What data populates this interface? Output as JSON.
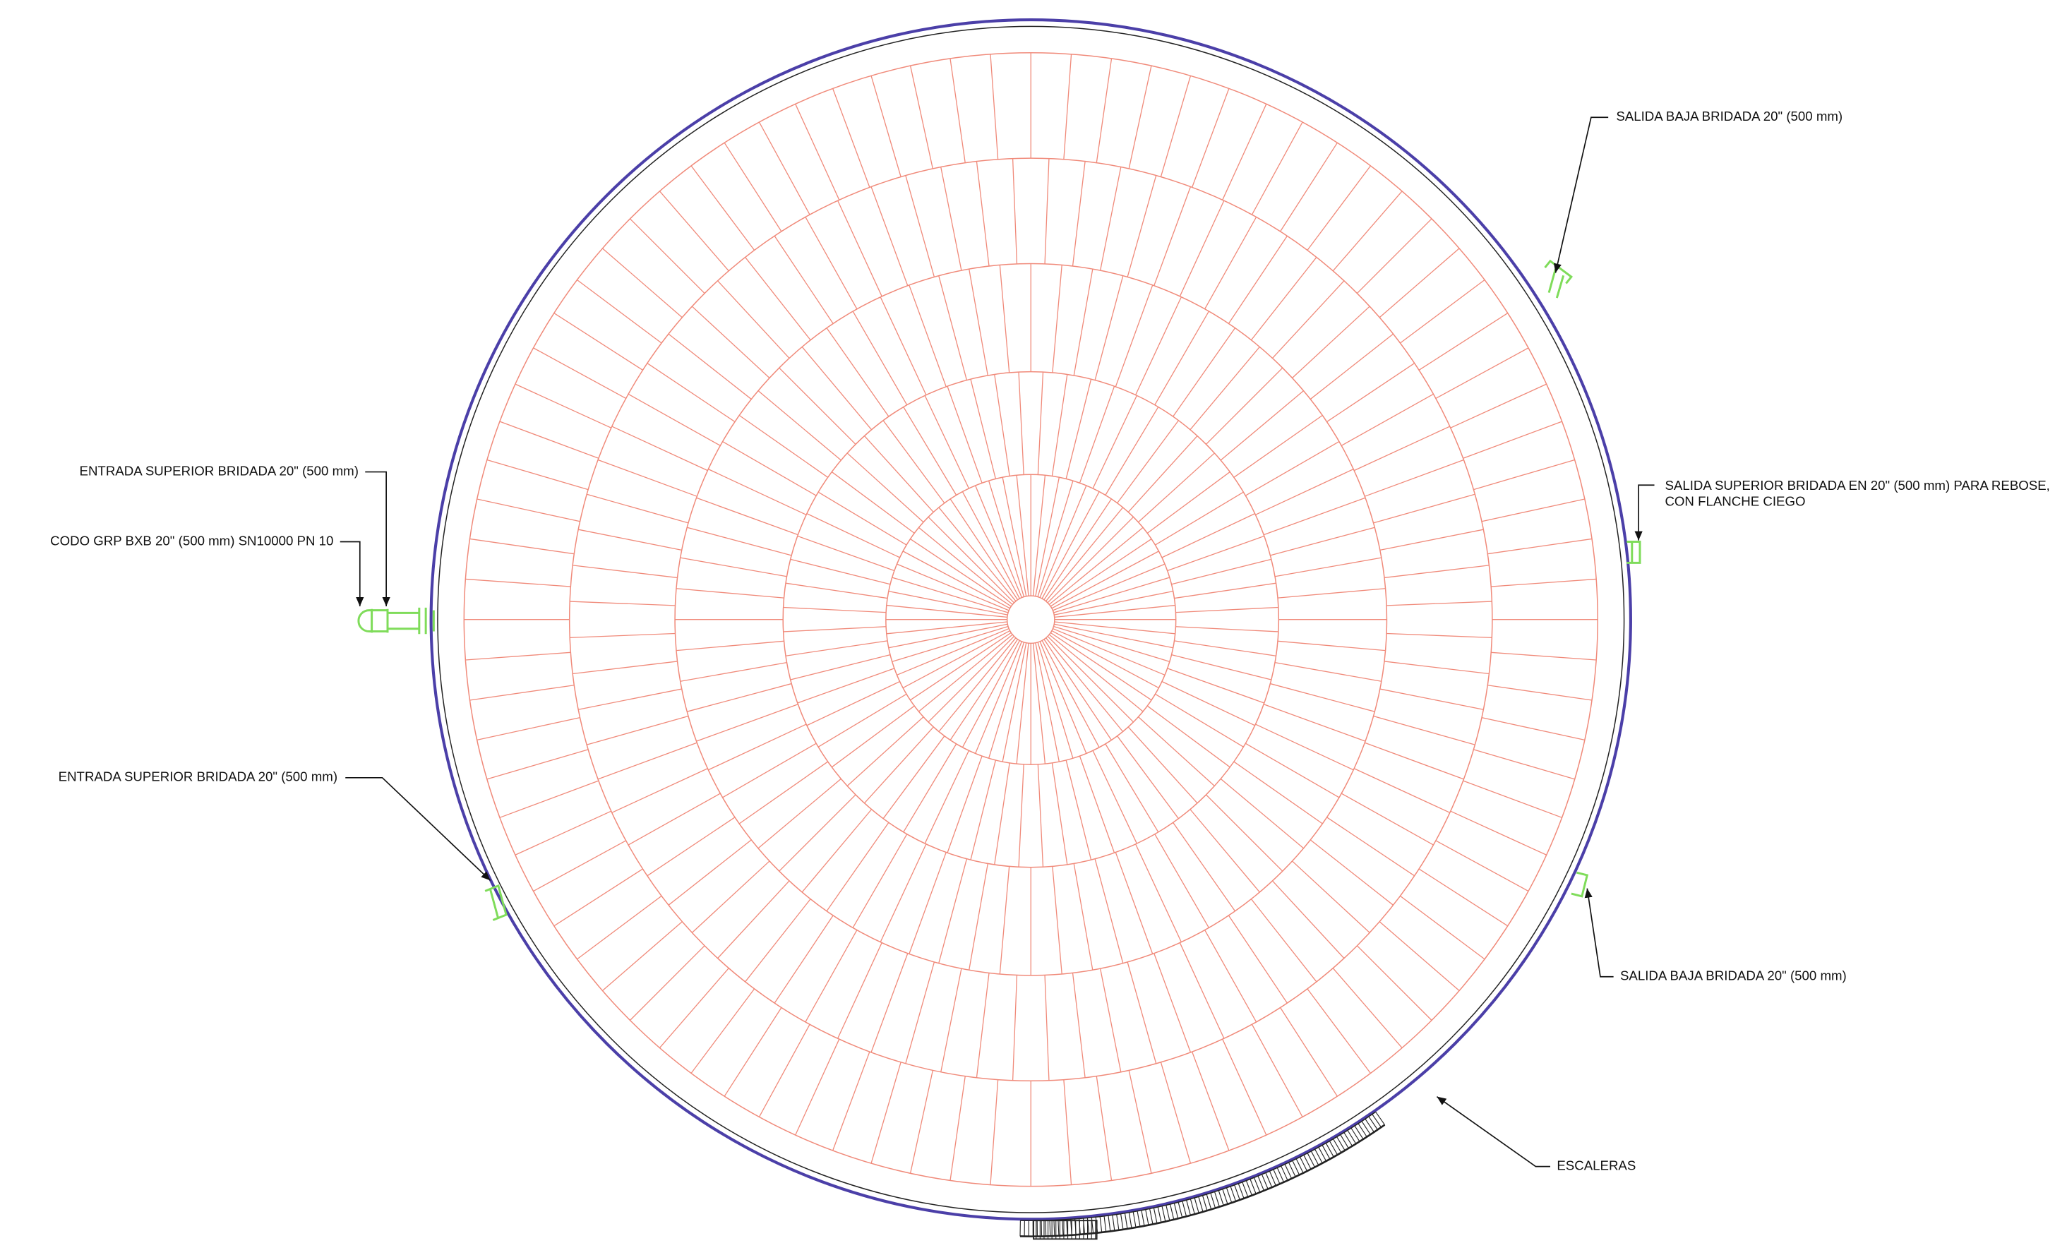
{
  "annotations": [
    {
      "label": "SALIDA BAJA BRIDADA 20\" (500 mm)"
    },
    {
      "label": "SALIDA SUPERIOR BRIDADA EN 20\" (500 mm) PARA REBOSE,",
      "label2": "CON FLANCHE CIEGO"
    },
    {
      "label": "ENTRADA SUPERIOR BRIDADA 20\" (500 mm)"
    },
    {
      "label": "CODO GRP BXB 20\" (500 mm) SN10000 PN 10"
    },
    {
      "label": "ENTRADA SUPERIOR BRIDADA 20\" (500 mm)"
    },
    {
      "label": "SALIDA BAJA BRIDADA 20\" (500 mm)"
    },
    {
      "label": "ESCALERAS"
    }
  ]
}
